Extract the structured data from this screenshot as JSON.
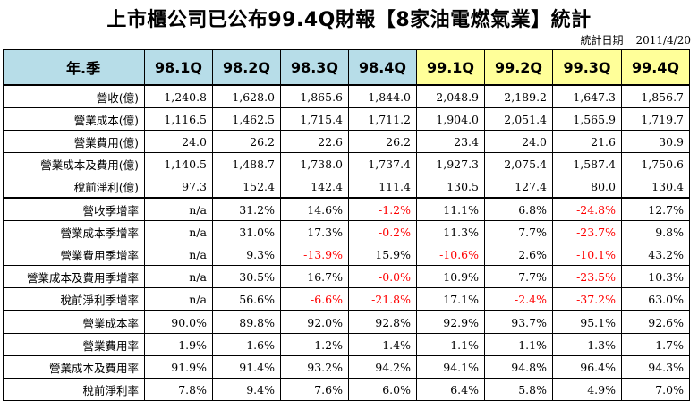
{
  "title": "上市櫃公司已公布99.4Q財報【8家油電燃氣業】統計",
  "stat_date_label": "統計日期",
  "stat_date": "2011/4/20",
  "header": {
    "label": "年.季",
    "quarters": [
      "98.1Q",
      "98.2Q",
      "98.3Q",
      "98.4Q",
      "99.1Q",
      "99.2Q",
      "99.3Q",
      "99.4Q"
    ]
  },
  "colors": {
    "header_98": "#b7dde8",
    "header_99": "#ffff99",
    "negative": "#ff0000"
  },
  "groups": [
    {
      "rows": [
        {
          "label": "營收(億)",
          "values": [
            "1,240.8",
            "1,628.0",
            "1,865.6",
            "1,844.0",
            "2,048.9",
            "2,189.2",
            "1,647.3",
            "1,856.7"
          ]
        },
        {
          "label": "營業成本(億)",
          "values": [
            "1,116.5",
            "1,462.5",
            "1,715.4",
            "1,711.2",
            "1,904.0",
            "2,051.4",
            "1,565.9",
            "1,719.7"
          ]
        },
        {
          "label": "營業費用(億)",
          "values": [
            "24.0",
            "26.2",
            "22.6",
            "26.2",
            "23.4",
            "24.0",
            "21.6",
            "30.9"
          ]
        },
        {
          "label": "營業成本及費用(億)",
          "values": [
            "1,140.5",
            "1,488.7",
            "1,738.0",
            "1,737.4",
            "1,927.3",
            "2,075.4",
            "1,587.4",
            "1,750.6"
          ]
        },
        {
          "label": "稅前淨利(億)",
          "values": [
            "97.3",
            "152.4",
            "142.4",
            "111.4",
            "130.5",
            "127.4",
            "80.0",
            "130.4"
          ]
        }
      ]
    },
    {
      "rows": [
        {
          "label": "營收季增率",
          "values": [
            "n/a",
            "31.2%",
            "14.6%",
            "-1.2%",
            "11.1%",
            "6.8%",
            "-24.8%",
            "12.7%"
          ]
        },
        {
          "label": "營業成本季增率",
          "values": [
            "n/a",
            "31.0%",
            "17.3%",
            "-0.2%",
            "11.3%",
            "7.7%",
            "-23.7%",
            "9.8%"
          ]
        },
        {
          "label": "營業費用季增率",
          "values": [
            "n/a",
            "9.3%",
            "-13.9%",
            "15.9%",
            "-10.6%",
            "2.6%",
            "-10.1%",
            "43.2%"
          ]
        },
        {
          "label": "營業成本及費用季增率",
          "values": [
            "n/a",
            "30.5%",
            "16.7%",
            "-0.0%",
            "10.9%",
            "7.7%",
            "-23.5%",
            "10.3%"
          ]
        },
        {
          "label": "稅前淨利季增率",
          "values": [
            "n/a",
            "56.6%",
            "-6.6%",
            "-21.8%",
            "17.1%",
            "-2.4%",
            "-37.2%",
            "63.0%"
          ]
        }
      ]
    },
    {
      "rows": [
        {
          "label": "營業成本率",
          "values": [
            "90.0%",
            "89.8%",
            "92.0%",
            "92.8%",
            "92.9%",
            "93.7%",
            "95.1%",
            "92.6%"
          ]
        },
        {
          "label": "營業費用率",
          "values": [
            "1.9%",
            "1.6%",
            "1.2%",
            "1.4%",
            "1.1%",
            "1.1%",
            "1.3%",
            "1.7%"
          ]
        },
        {
          "label": "營業成本及費用率",
          "values": [
            "91.9%",
            "91.4%",
            "93.2%",
            "94.2%",
            "94.1%",
            "94.8%",
            "96.4%",
            "94.3%"
          ]
        },
        {
          "label": "稅前淨利率",
          "values": [
            "7.8%",
            "9.4%",
            "7.6%",
            "6.0%",
            "6.4%",
            "5.8%",
            "4.9%",
            "7.0%"
          ]
        }
      ]
    }
  ]
}
